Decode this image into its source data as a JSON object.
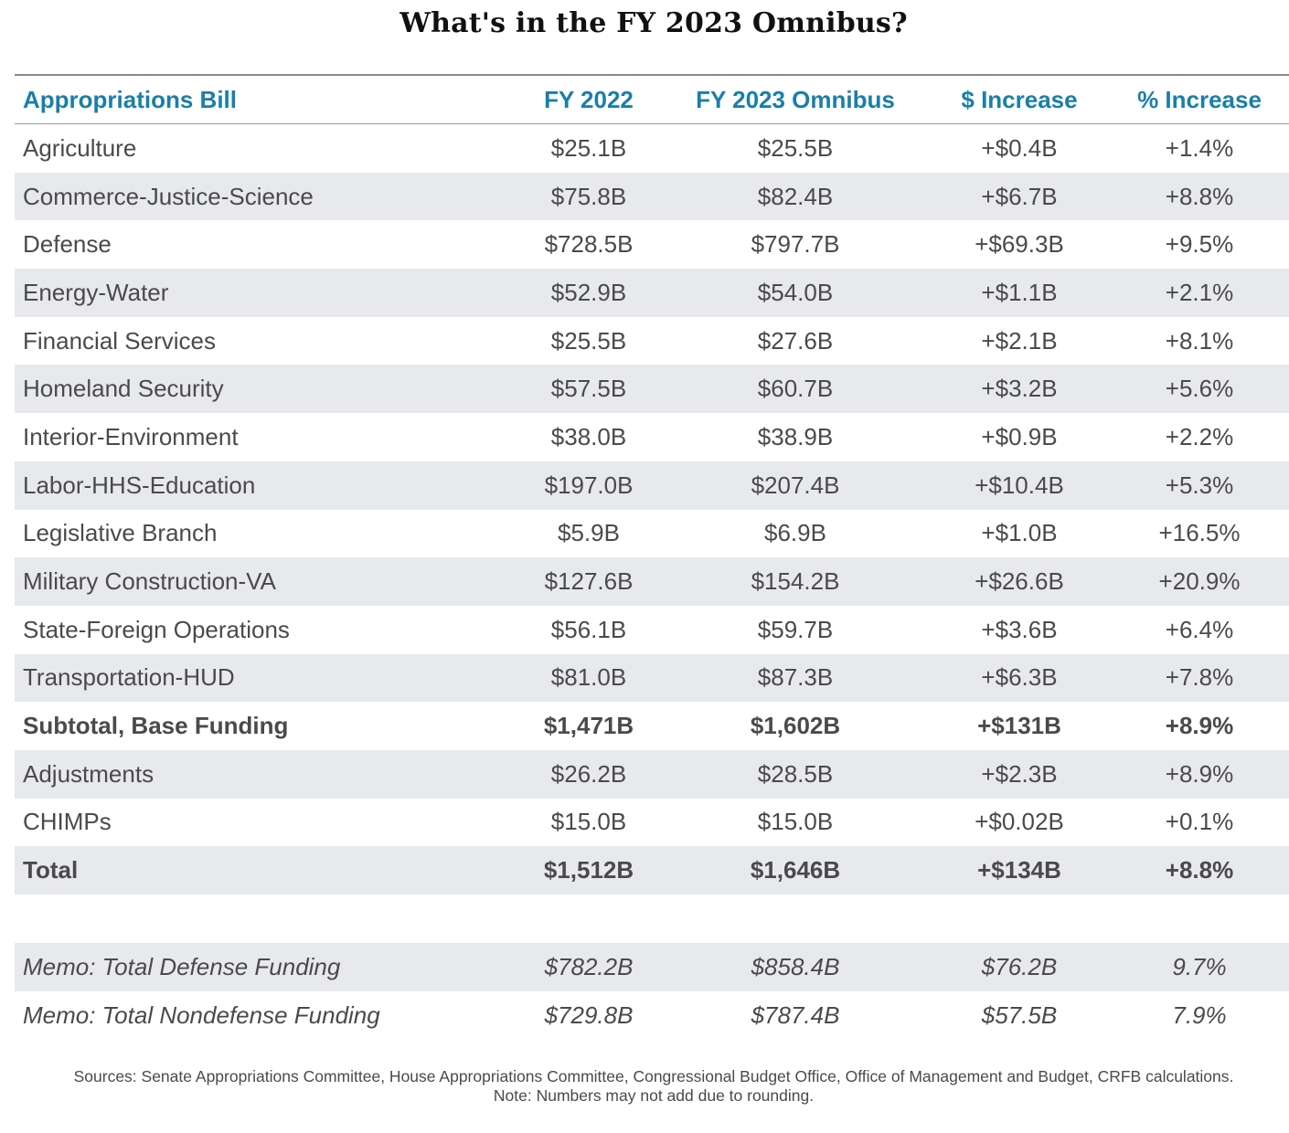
{
  "title": "What's in the FY 2023 Omnibus?",
  "colors": {
    "header_text": "#1a7fa8",
    "row_shade": "#e8e9ed",
    "body_text": "#4a4a4a"
  },
  "table": {
    "headers": [
      "Appropriations Bill",
      "FY 2022",
      "FY 2023 Omnibus",
      "$ Increase",
      "% Increase"
    ],
    "rows": [
      {
        "cells": [
          "Agriculture",
          "$25.1B",
          "$25.5B",
          "+$0.4B",
          "+1.4%"
        ]
      },
      {
        "cells": [
          "Commerce-Justice-Science",
          "$75.8B",
          "$82.4B",
          "+$6.7B",
          "+8.8%"
        ]
      },
      {
        "cells": [
          "Defense",
          "$728.5B",
          "$797.7B",
          "+$69.3B",
          "+9.5%"
        ]
      },
      {
        "cells": [
          "Energy-Water",
          "$52.9B",
          "$54.0B",
          "+$1.1B",
          "+2.1%"
        ]
      },
      {
        "cells": [
          "Financial Services",
          "$25.5B",
          "$27.6B",
          "+$2.1B",
          "+8.1%"
        ]
      },
      {
        "cells": [
          "Homeland Security",
          "$57.5B",
          "$60.7B",
          "+$3.2B",
          "+5.6%"
        ]
      },
      {
        "cells": [
          "Interior-Environment",
          "$38.0B",
          "$38.9B",
          "+$0.9B",
          "+2.2%"
        ]
      },
      {
        "cells": [
          "Labor-HHS-Education",
          "$197.0B",
          "$207.4B",
          "+$10.4B",
          "+5.3%"
        ]
      },
      {
        "cells": [
          "Legislative Branch",
          "$5.9B",
          "$6.9B",
          "+$1.0B",
          "+16.5%"
        ]
      },
      {
        "cells": [
          "Military Construction-VA",
          "$127.6B",
          "$154.2B",
          "+$26.6B",
          "+20.9%"
        ]
      },
      {
        "cells": [
          "State-Foreign Operations",
          "$56.1B",
          "$59.7B",
          "+$3.6B",
          "+6.4%"
        ]
      },
      {
        "cells": [
          "Transportation-HUD",
          "$81.0B",
          "$87.3B",
          "+$6.3B",
          "+7.8%"
        ]
      },
      {
        "cells": [
          "Subtotal, Base Funding",
          "$1,471B",
          "$1,602B",
          "+$131B",
          "+8.9%"
        ]
      },
      {
        "cells": [
          "Adjustments",
          "$26.2B",
          "$28.5B",
          "+$2.3B",
          "+8.9%"
        ]
      },
      {
        "cells": [
          "CHIMPs",
          "$15.0B",
          "$15.0B",
          "+$0.02B",
          "+0.1%"
        ]
      },
      {
        "cells": [
          "Total",
          "$1,512B",
          "$1,646B",
          "+$134B",
          "+8.8%"
        ]
      }
    ],
    "memo_rows": [
      {
        "cells": [
          "Memo: Total Defense Funding",
          "$782.2B",
          "$858.4B",
          "$76.2B",
          "9.7%"
        ]
      },
      {
        "cells": [
          "Memo: Total Nondefense Funding",
          "$729.8B",
          "$787.4B",
          "$57.5B",
          "7.9%"
        ]
      }
    ]
  },
  "footer": {
    "sources": "Sources: Senate Appropriations Committee, House Appropriations Committee, Congressional Budget Office, Office of Management and Budget, CRFB calculations.",
    "note": "Note: Numbers may not add due to rounding."
  }
}
